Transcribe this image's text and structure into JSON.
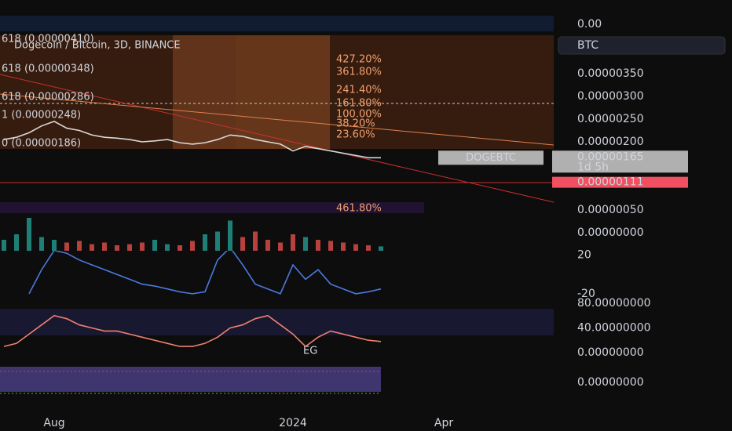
{
  "chart_data": {
    "type": "line",
    "title": "Dogecoin / Bitcoin, 3D, BINANCE",
    "currency": "BTC",
    "top_pane_label": "0.00",
    "categories": [
      null,
      null,
      null,
      null,
      "Aug",
      null,
      null,
      null,
      null,
      null,
      null,
      null,
      null,
      null,
      null,
      null,
      null,
      null,
      null,
      null,
      null,
      null,
      null,
      "2024",
      null,
      null,
      null,
      null,
      null,
      null,
      null,
      null,
      null,
      null,
      null,
      "Apr"
    ],
    "series": [
      {
        "name": "DOGEBTC",
        "color": "#d8d8d8",
        "values": [
          2.05e-06,
          2.1e-06,
          2.2e-06,
          2.35e-06,
          2.45e-06,
          2.3e-06,
          2.25e-06,
          2.15e-06,
          2.1e-06,
          2.08e-06,
          2.05e-06,
          2e-06,
          2.02e-06,
          2.05e-06,
          1.98e-06,
          1.95e-06,
          1.98e-06,
          2.05e-06,
          2.15e-06,
          2.12e-06,
          2.05e-06,
          2e-06,
          1.95e-06,
          1.8e-06,
          1.9e-06,
          1.85e-06,
          1.8e-06,
          1.75e-06,
          1.7e-06,
          1.65e-06,
          1.65e-06,
          null,
          null,
          null,
          null,
          null
        ]
      }
    ],
    "ylim": [
      -2.24e-07,
      5.12e-06
    ],
    "yticks": [
      {
        "value": 3.5e-06,
        "label": "0.00000350"
      },
      {
        "value": 3e-06,
        "label": "0.00000300"
      },
      {
        "value": 2.5e-06,
        "label": "0.00000250"
      },
      {
        "value": 2e-06,
        "label": "0.00000200"
      },
      {
        "value": 5e-07,
        "label": "0.00000050"
      },
      {
        "value": 0,
        "label": "0.00000000"
      }
    ],
    "last_price": {
      "value": 1.65e-06,
      "label": "0.00000165"
    },
    "countdown": "1d 5h",
    "alert_price": {
      "value": 1.11e-06,
      "label": "0.00000111"
    },
    "fib_levels": [
      "427.20%",
      "361.80%",
      "241.40%",
      "161.80%",
      "100.00%",
      "38.20%",
      "23.60%",
      "461.80%"
    ],
    "left_labels": [
      "618 (0.00000410)",
      "618 (0.00000348)",
      "618 (0.00000286)",
      "1 (0.00000248)",
      "0 (0.00000186)"
    ],
    "volume": {
      "color": "#26a69a",
      "down_color": "#ef5350",
      "ylim": [
        0,
        100
      ],
      "values": [
        20,
        30,
        60,
        25,
        20,
        15,
        18,
        12,
        15,
        10,
        12,
        15,
        20,
        12,
        10,
        18,
        30,
        35,
        55,
        25,
        35,
        20,
        15,
        30,
        25,
        20,
        18,
        15,
        12,
        10,
        8,
        null,
        null,
        null,
        null,
        null
      ]
    },
    "oscillator": {
      "color": "#4a7ae0",
      "ylim": [
        -25.8,
        24.6
      ],
      "yticks": [
        20,
        -20
      ],
      "values": [
        null,
        null,
        -20,
        5,
        25,
        22,
        15,
        10,
        5,
        0,
        -5,
        -10,
        -12,
        -15,
        -18,
        -20,
        -18,
        15,
        28,
        10,
        -10,
        -15,
        -20,
        10,
        -5,
        5,
        -10,
        -15,
        -20,
        -18,
        -15,
        null,
        null,
        null,
        null,
        null
      ]
    },
    "stochastic": {
      "color": "#f08070",
      "ylim": [
        -10.2,
        85.1
      ],
      "yticks": [
        {
          "value": 80,
          "label": "80.00000000"
        },
        {
          "value": 40,
          "label": "40.00000000"
        },
        {
          "value": 0,
          "label": "0.00000000"
        }
      ],
      "annotation": "EG",
      "values": [
        10,
        15,
        30,
        45,
        60,
        55,
        45,
        40,
        35,
        35,
        30,
        25,
        20,
        15,
        10,
        10,
        15,
        25,
        40,
        45,
        55,
        60,
        45,
        30,
        10,
        25,
        35,
        30,
        25,
        20,
        18,
        null,
        null,
        null,
        null,
        null
      ]
    },
    "bottom_pane_tick": {
      "value": 0,
      "label": "0.00000000"
    }
  }
}
